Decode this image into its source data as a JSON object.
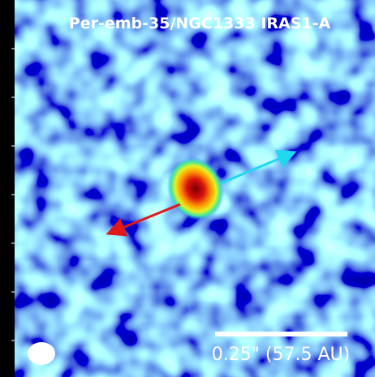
{
  "title": "Per-emb-35/NGC1333 IRAS1-A",
  "scale_label": "0.25\" (57.5 AU)"
}
